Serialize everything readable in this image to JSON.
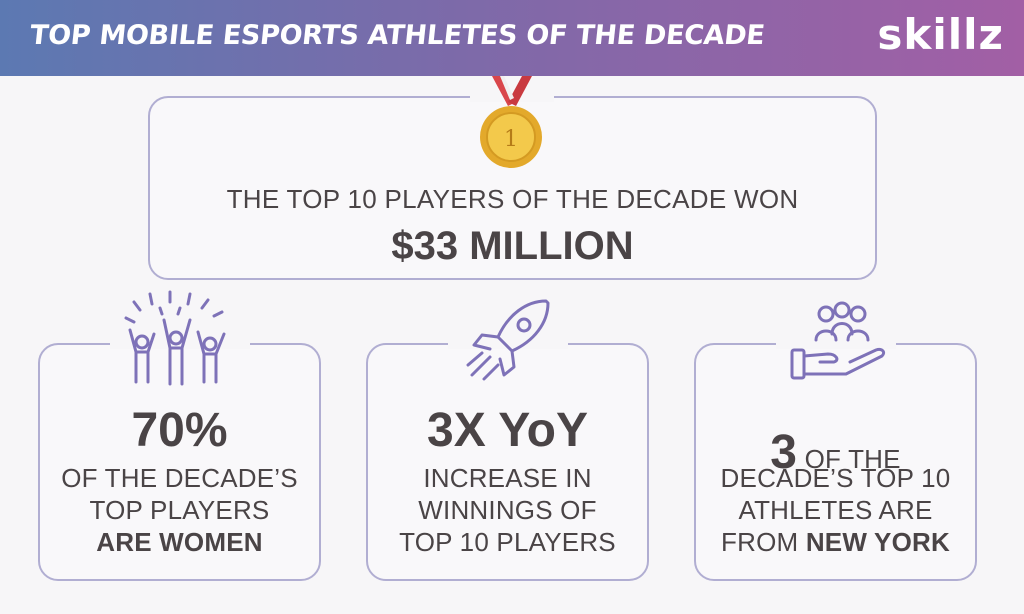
{
  "header": {
    "title": "TOP MOBILE ESPORTS ATHLETES OF THE DECADE",
    "logo": "skillz"
  },
  "top_card": {
    "medal_number": "1",
    "lead": "THE TOP 10 PLAYERS OF THE DECADE WON",
    "amount": "$33 MILLION"
  },
  "card_women": {
    "stat": "70%",
    "line1": "OF THE DECADE’S",
    "line2": "TOP PLAYERS",
    "line3": "ARE WOMEN"
  },
  "card_growth": {
    "stat": "3X YoY",
    "line1": "INCREASE IN",
    "line2": "WINNINGS OF",
    "line3": "TOP 10 PLAYERS"
  },
  "card_ny": {
    "stat": "3",
    "line1_rest": " OF THE",
    "line2": "DECADE’S TOP 10",
    "line3": "ATHLETES ARE",
    "line4_pre": "FROM ",
    "line4_bold": "NEW YORK"
  },
  "icons": [
    "medal-icon",
    "celebrating-people-icon",
    "rocket-icon",
    "community-hand-icon"
  ],
  "colors": {
    "accent": "#7e72b8",
    "outline": "#b1aed2",
    "text": "#4a4446",
    "medal": "#e3a92b"
  }
}
